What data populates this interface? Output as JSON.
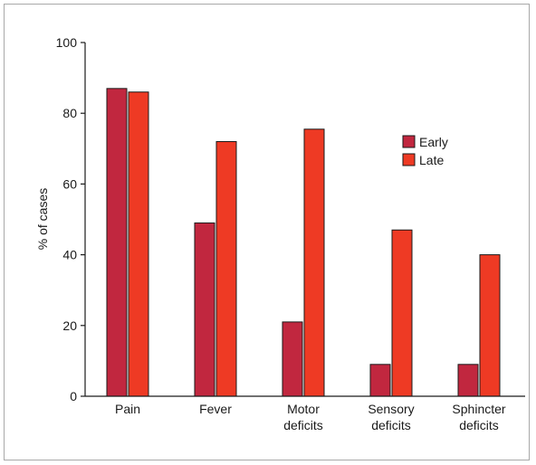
{
  "chart_data": {
    "type": "bar",
    "categories": [
      [
        "Pain"
      ],
      [
        "Fever"
      ],
      [
        "Motor",
        "deficits"
      ],
      [
        "Sensory",
        "deficits"
      ],
      [
        "Sphincter",
        "deficits"
      ]
    ],
    "series": [
      {
        "name": "Early",
        "color": "#c1273f",
        "values": [
          87,
          49,
          21,
          9,
          9
        ]
      },
      {
        "name": "Late",
        "color": "#ee3a24",
        "values": [
          86,
          72,
          75.5,
          47,
          40
        ]
      }
    ],
    "ylabel": "% of cases",
    "xlabel": "",
    "ylim": [
      0,
      100
    ],
    "yticks": [
      0,
      20,
      40,
      60,
      80,
      100
    ],
    "grid": false,
    "legend_position": "top-right"
  }
}
